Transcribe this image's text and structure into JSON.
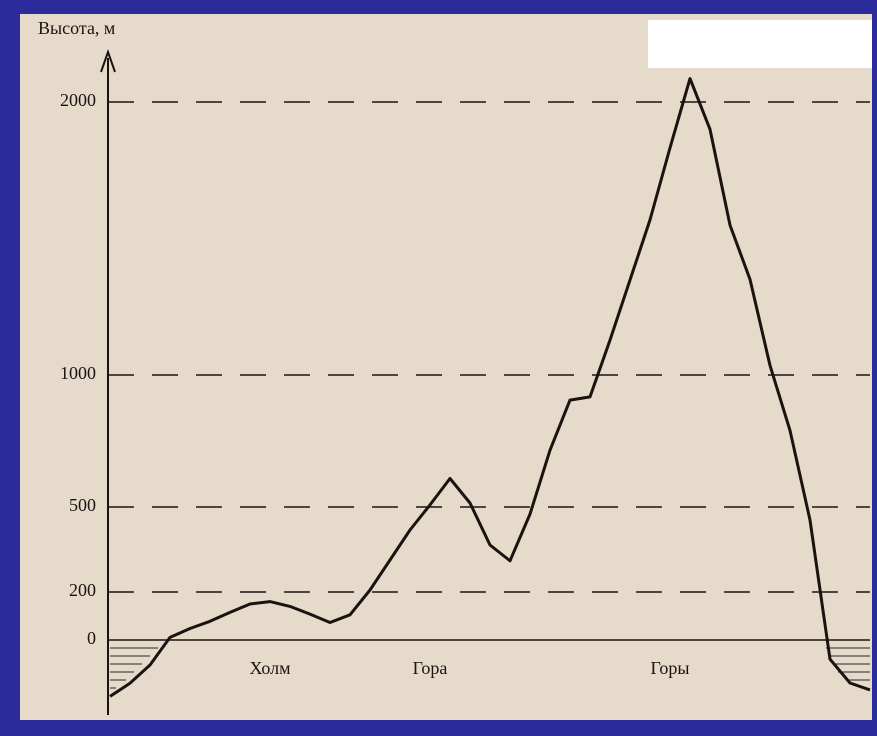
{
  "chart_data": {
    "type": "line",
    "title": "Высота, м",
    "categories": [
      null,
      null,
      null,
      null,
      null,
      null,
      null,
      null,
      "Холм",
      null,
      null,
      null,
      null,
      null,
      null,
      null,
      "Гора",
      null,
      null,
      null,
      null,
      null,
      null,
      null,
      null,
      null,
      null,
      null,
      "Горы",
      null,
      null,
      null,
      null,
      null,
      null,
      null,
      null,
      null,
      null
    ],
    "values": [
      -235,
      -180,
      -104,
      11,
      48,
      78,
      115,
      150,
      160,
      140,
      108,
      73,
      105,
      207,
      313,
      419,
      508,
      608,
      515,
      366,
      310,
      475,
      715,
      905,
      917,
      1128,
      1348,
      1568,
      1832,
      2085,
      1900,
      1549,
      1350,
      1035,
      790,
      454,
      -80,
      -179,
      -208
    ],
    "color": "#1a1410",
    "ylim": [
      -300,
      2200
    ],
    "yticks": [
      0,
      200,
      500,
      1000,
      2000
    ],
    "grid": true
  }
}
